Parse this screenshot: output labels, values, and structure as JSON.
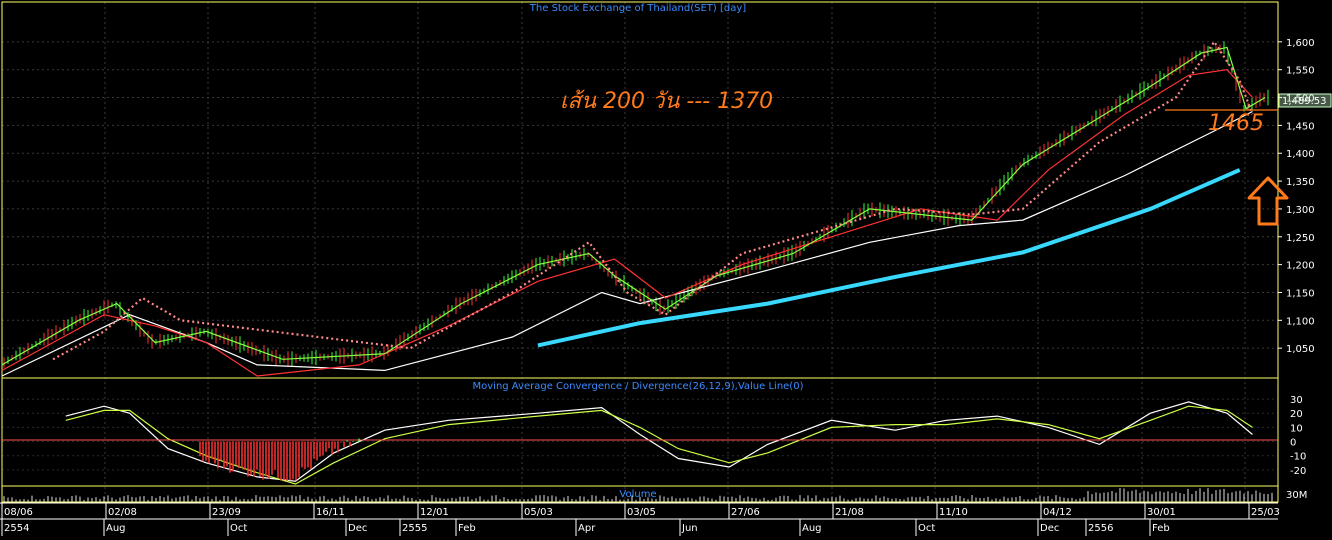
{
  "header": {
    "title": "The Stock Exchange of Thailand(SET) [day]"
  },
  "annotations": {
    "ma200_note": "เส้น 200 วัน --- 1370",
    "support_label": "1465",
    "current_price": "1,489.53"
  },
  "colors": {
    "background": "#000000",
    "grid": "#3a3a3a",
    "panel_border": "#ffff66",
    "ma200": "#39d8ff",
    "annotation": "#ff7a1a",
    "zero_line": "#ff5555",
    "label_blue": "#3a8cff",
    "price_box": "#c8ffc8"
  },
  "chart_data": [
    {
      "type": "line",
      "title": "The Stock Exchange of Thailand(SET) [day]",
      "ylim": [
        1000,
        1650
      ],
      "y_ticks": [
        "1,600",
        "1,550",
        "1,500",
        "1,450",
        "1,400",
        "1,350",
        "1,300",
        "1,250",
        "1,200",
        "1,150",
        "1,100",
        "1,050"
      ],
      "x_dates": [
        "08/06",
        "02/08",
        "23/09",
        "16/11",
        "12/01",
        "05/03",
        "03/05",
        "27/06",
        "21/08",
        "11/10",
        "04/12",
        "30/01",
        "25/03"
      ],
      "x_months": [
        "2554",
        "Aug",
        "Oct",
        "Dec",
        "2555",
        "Feb",
        "Apr",
        "Jun",
        "Aug",
        "Oct",
        "Dec",
        "2556",
        "Feb"
      ],
      "series": [
        {
          "name": "",
          "color": "#39d8ff",
          "x": [
            0.42,
            0.5,
            0.6,
            0.7,
            0.8,
            0.9,
            0.97
          ],
          "values": [
            1055,
            1095,
            1130,
            1178,
            1222,
            1300,
            1370
          ]
        },
        {
          "name": "",
          "color": "#ffffff",
          "x": [
            0.0,
            0.1,
            0.16,
            0.2,
            0.3,
            0.4,
            0.47,
            0.5,
            0.6,
            0.68,
            0.75,
            0.8,
            0.88,
            0.95,
            0.98
          ],
          "values": [
            1000,
            1110,
            1060,
            1020,
            1010,
            1070,
            1150,
            1130,
            1190,
            1240,
            1270,
            1280,
            1360,
            1440,
            1475
          ]
        },
        {
          "name": "",
          "color": "#ff3333",
          "x": [
            0.0,
            0.08,
            0.12,
            0.16,
            0.2,
            0.28,
            0.35,
            0.42,
            0.48,
            0.52,
            0.58,
            0.65,
            0.72,
            0.78,
            0.82,
            0.88,
            0.93,
            0.96,
            0.98
          ],
          "values": [
            1010,
            1110,
            1090,
            1060,
            1000,
            1020,
            1090,
            1170,
            1210,
            1140,
            1200,
            1250,
            1300,
            1280,
            1370,
            1470,
            1540,
            1550,
            1500
          ]
        },
        {
          "name": "",
          "color": "#88ff44",
          "x": [
            0.0,
            0.06,
            0.09,
            0.12,
            0.16,
            0.22,
            0.3,
            0.36,
            0.42,
            0.46,
            0.48,
            0.52,
            0.56,
            0.62,
            0.68,
            0.72,
            0.76,
            0.8,
            0.85,
            0.9,
            0.94,
            0.96,
            0.975,
            0.99
          ],
          "values": [
            1020,
            1100,
            1130,
            1060,
            1080,
            1030,
            1040,
            1130,
            1200,
            1220,
            1180,
            1120,
            1180,
            1220,
            1300,
            1290,
            1280,
            1380,
            1450,
            1520,
            1580,
            1590,
            1480,
            1500
          ]
        },
        {
          "name": "",
          "color": "#ff8888",
          "dotted": true,
          "x": [
            0.04,
            0.08,
            0.11,
            0.14,
            0.32,
            0.4,
            0.46,
            0.49,
            0.52,
            0.58,
            0.64,
            0.7,
            0.76,
            0.8,
            0.86,
            0.92,
            0.95,
            0.97,
            0.98
          ],
          "values": [
            1030,
            1080,
            1140,
            1100,
            1050,
            1150,
            1240,
            1150,
            1110,
            1220,
            1260,
            1300,
            1290,
            1300,
            1420,
            1500,
            1600,
            1530,
            1470
          ]
        }
      ]
    },
    {
      "type": "line",
      "title": "Moving Average Convergence / Divergence(26,12,9),Value Line(0)",
      "ylim": [
        -30,
        35
      ],
      "y_ticks": [
        "30",
        "20",
        "10",
        "0",
        "-10",
        "-20"
      ],
      "series": [
        {
          "name": "",
          "color": "#ffffff",
          "x": [
            0.05,
            0.08,
            0.1,
            0.13,
            0.16,
            0.2,
            0.23,
            0.26,
            0.3,
            0.35,
            0.42,
            0.47,
            0.5,
            0.53,
            0.57,
            0.6,
            0.65,
            0.7,
            0.74,
            0.78,
            0.82,
            0.86,
            0.9,
            0.93,
            0.96,
            0.98
          ],
          "values": [
            18,
            25,
            20,
            -5,
            -15,
            -25,
            -28,
            -8,
            8,
            15,
            20,
            24,
            5,
            -12,
            -18,
            -2,
            15,
            8,
            15,
            18,
            10,
            -2,
            20,
            28,
            20,
            5
          ]
        },
        {
          "name": "",
          "color": "#ccff44",
          "x": [
            0.05,
            0.08,
            0.1,
            0.13,
            0.16,
            0.2,
            0.23,
            0.26,
            0.3,
            0.35,
            0.42,
            0.47,
            0.5,
            0.53,
            0.57,
            0.6,
            0.65,
            0.7,
            0.74,
            0.78,
            0.82,
            0.86,
            0.9,
            0.93,
            0.96,
            0.98
          ],
          "values": [
            15,
            22,
            22,
            2,
            -10,
            -22,
            -30,
            -15,
            2,
            12,
            18,
            22,
            10,
            -5,
            -15,
            -8,
            10,
            12,
            12,
            16,
            12,
            2,
            15,
            25,
            22,
            10
          ]
        }
      ]
    },
    {
      "type": "bar",
      "title": "Volume",
      "y_ticks": [
        "30M"
      ]
    }
  ]
}
